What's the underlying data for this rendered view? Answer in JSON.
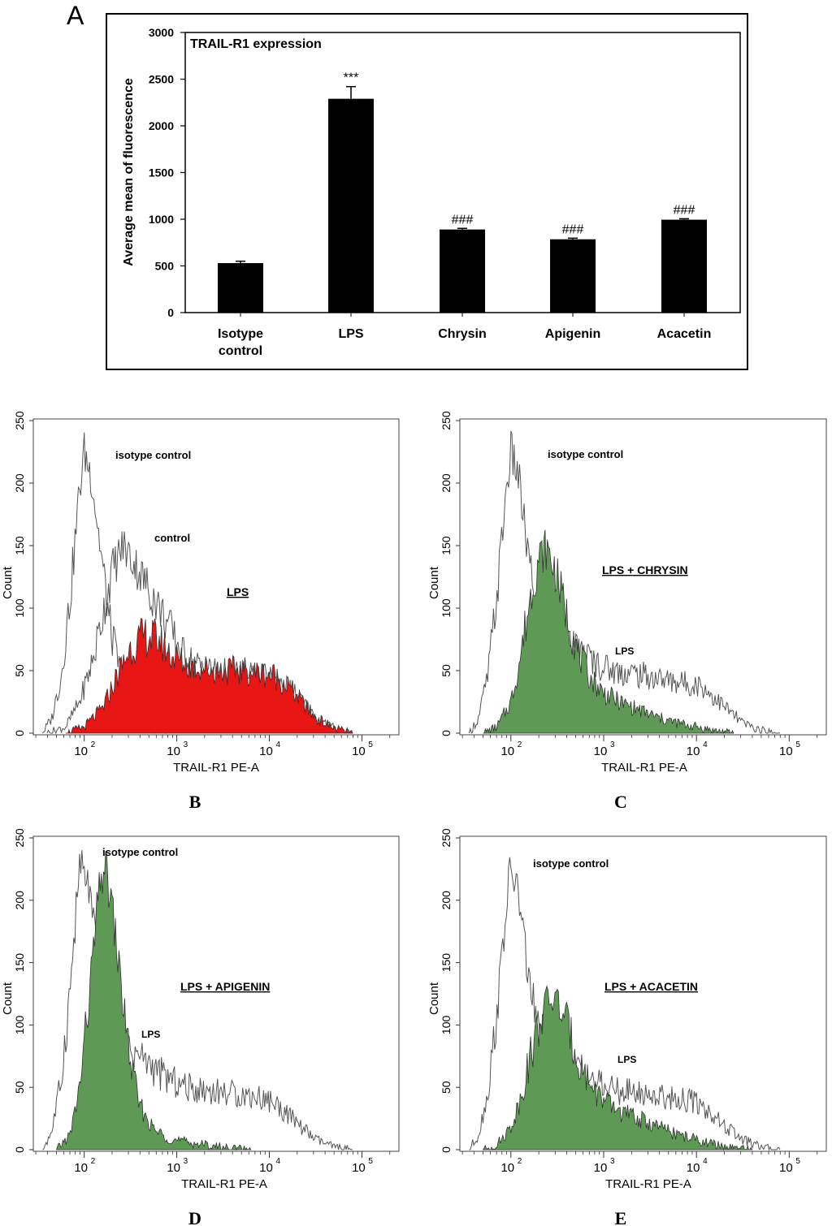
{
  "chart_data": [
    {
      "id": "A",
      "type": "bar",
      "panel_label": "A",
      "title": "TRAIL-R1 expression",
      "ylabel": "Average mean of fluorescence",
      "ylim": [
        0,
        3000
      ],
      "yticks": [
        "0",
        "500",
        "1000",
        "1500",
        "2000",
        "2500",
        "3000"
      ],
      "categories": [
        "Isotype control",
        "LPS",
        "Chrysin",
        "Apigenin",
        "Acacetin"
      ],
      "category_lines": [
        [
          "Isotype",
          "control"
        ],
        [
          "LPS"
        ],
        [
          "Chrysin"
        ],
        [
          "Apigenin"
        ],
        [
          "Acacetin"
        ]
      ],
      "values": [
        530,
        2290,
        890,
        785,
        995
      ],
      "errors": [
        20,
        130,
        12,
        12,
        10
      ],
      "annotations": [
        "",
        "***",
        "###",
        "###",
        "###"
      ],
      "bar_color": "#000000"
    },
    {
      "id": "B",
      "type": "area",
      "panel_label": "B",
      "xlabel": "TRAIL-R1 PE-A",
      "ylabel": "Count",
      "xscale": "log",
      "ylim": [
        0,
        250
      ],
      "yticks": [
        "0",
        "50",
        "100",
        "150",
        "200",
        "250"
      ],
      "xticks": [
        "10",
        "10",
        "10",
        "10"
      ],
      "xtick_exponents": [
        "2",
        "3",
        "4",
        "5"
      ],
      "fill_color": "#e81515",
      "series": [
        {
          "name": "isotype control",
          "style": "outline",
          "peak_log": 2.0,
          "peak_count": 225,
          "points": [
            [
              1.55,
              0
            ],
            [
              1.65,
              12
            ],
            [
              1.75,
              45
            ],
            [
              1.85,
              110
            ],
            [
              1.95,
              195
            ],
            [
              2.0,
              225
            ],
            [
              2.08,
              205
            ],
            [
              2.18,
              145
            ],
            [
              2.28,
              85
            ],
            [
              2.4,
              45
            ],
            [
              2.55,
              20
            ],
            [
              2.7,
              6
            ],
            [
              2.9,
              0
            ]
          ]
        },
        {
          "name": "control",
          "style": "outline",
          "peak_log": 2.42,
          "peak_count": 150,
          "points": [
            [
              1.6,
              0
            ],
            [
              1.8,
              5
            ],
            [
              1.95,
              25
            ],
            [
              2.1,
              60
            ],
            [
              2.2,
              95
            ],
            [
              2.3,
              130
            ],
            [
              2.42,
              150
            ],
            [
              2.55,
              135
            ],
            [
              2.7,
              115
            ],
            [
              2.85,
              95
            ],
            [
              2.95,
              80
            ],
            [
              3.05,
              65
            ],
            [
              3.2,
              55
            ],
            [
              3.4,
              50
            ],
            [
              3.6,
              48
            ],
            [
              3.8,
              46
            ],
            [
              4.0,
              44
            ],
            [
              4.15,
              40
            ],
            [
              4.3,
              30
            ],
            [
              4.5,
              12
            ],
            [
              4.7,
              4
            ],
            [
              4.9,
              0
            ]
          ]
        },
        {
          "name": "LPS",
          "style": "filled",
          "underline": true,
          "peak_log": 2.7,
          "peak_count": 78,
          "points": [
            [
              1.8,
              0
            ],
            [
              2.0,
              5
            ],
            [
              2.2,
              20
            ],
            [
              2.35,
              45
            ],
            [
              2.5,
              68
            ],
            [
              2.65,
              78
            ],
            [
              2.8,
              75
            ],
            [
              2.95,
              62
            ],
            [
              3.1,
              55
            ],
            [
              3.3,
              52
            ],
            [
              3.5,
              50
            ],
            [
              3.7,
              50
            ],
            [
              3.9,
              48
            ],
            [
              4.05,
              46
            ],
            [
              4.2,
              38
            ],
            [
              4.35,
              25
            ],
            [
              4.5,
              12
            ],
            [
              4.7,
              4
            ],
            [
              4.9,
              0
            ]
          ]
        }
      ],
      "labels": {
        "isotype": "isotype control",
        "control": "control",
        "treatment": "LPS"
      }
    },
    {
      "id": "C",
      "type": "area",
      "panel_label": "C",
      "xlabel": "TRAIL-R1 PE-A",
      "ylabel": "Count",
      "xscale": "log",
      "ylim": [
        0,
        250
      ],
      "yticks": [
        "0",
        "50",
        "100",
        "150",
        "200",
        "250"
      ],
      "xticks": [
        "10",
        "10",
        "10",
        "10"
      ],
      "xtick_exponents": [
        "2",
        "3",
        "4",
        "5"
      ],
      "fill_color": "#5e9a55",
      "series": [
        {
          "name": "isotype control",
          "style": "outline",
          "peak_log": 2.0,
          "peak_count": 225,
          "points": [
            [
              1.55,
              0
            ],
            [
              1.65,
              12
            ],
            [
              1.75,
              45
            ],
            [
              1.85,
              110
            ],
            [
              1.95,
              195
            ],
            [
              2.0,
              225
            ],
            [
              2.08,
              205
            ],
            [
              2.18,
              145
            ],
            [
              2.28,
              95
            ],
            [
              2.4,
              80
            ],
            [
              2.55,
              72
            ],
            [
              2.65,
              68
            ],
            [
              2.8,
              62
            ],
            [
              2.95,
              55
            ],
            [
              3.1,
              50
            ],
            [
              3.3,
              48
            ],
            [
              3.5,
              45
            ],
            [
              3.7,
              42
            ],
            [
              3.9,
              40
            ],
            [
              4.05,
              38
            ],
            [
              4.2,
              28
            ],
            [
              4.35,
              18
            ],
            [
              4.5,
              8
            ],
            [
              4.7,
              2
            ],
            [
              4.9,
              0
            ]
          ]
        },
        {
          "name": "LPS + CHRYSIN",
          "style": "filled",
          "underline": true,
          "peak_log": 2.38,
          "peak_count": 148,
          "points": [
            [
              1.7,
              0
            ],
            [
              1.85,
              5
            ],
            [
              2.0,
              25
            ],
            [
              2.1,
              60
            ],
            [
              2.2,
              105
            ],
            [
              2.3,
              140
            ],
            [
              2.38,
              148
            ],
            [
              2.48,
              130
            ],
            [
              2.6,
              95
            ],
            [
              2.72,
              65
            ],
            [
              2.85,
              45
            ],
            [
              3.0,
              32
            ],
            [
              3.2,
              24
            ],
            [
              3.4,
              18
            ],
            [
              3.6,
              12
            ],
            [
              3.8,
              8
            ],
            [
              4.0,
              5
            ],
            [
              4.2,
              2
            ],
            [
              4.4,
              0
            ]
          ]
        }
      ],
      "labels": {
        "isotype": "isotype control",
        "treatment": "LPS + CHRYSIN",
        "lps": "LPS"
      }
    },
    {
      "id": "D",
      "type": "area",
      "panel_label": "D",
      "xlabel": "TRAIL-R1 PE-A",
      "ylabel": "Count",
      "xscale": "log",
      "ylim": [
        0,
        250
      ],
      "yticks": [
        "0",
        "50",
        "100",
        "150",
        "200",
        "250"
      ],
      "xticks": [
        "10",
        "10",
        "10",
        "10"
      ],
      "xtick_exponents": [
        "2",
        "3",
        "4",
        "5"
      ],
      "fill_color": "#5e9a55",
      "series": [
        {
          "name": "isotype control",
          "style": "outline",
          "peak_log": 1.95,
          "peak_count": 228,
          "points": [
            [
              1.55,
              0
            ],
            [
              1.65,
              15
            ],
            [
              1.75,
              55
            ],
            [
              1.85,
              130
            ],
            [
              1.95,
              228
            ],
            [
              2.05,
              210
            ],
            [
              2.15,
              150
            ],
            [
              2.25,
              100
            ],
            [
              2.35,
              85
            ],
            [
              2.5,
              80
            ],
            [
              2.65,
              72
            ],
            [
              2.8,
              62
            ],
            [
              2.95,
              55
            ],
            [
              3.1,
              50
            ],
            [
              3.3,
              48
            ],
            [
              3.5,
              46
            ],
            [
              3.7,
              44
            ],
            [
              3.9,
              42
            ],
            [
              4.05,
              38
            ],
            [
              4.2,
              28
            ],
            [
              4.35,
              18
            ],
            [
              4.5,
              8
            ],
            [
              4.7,
              2
            ],
            [
              4.9,
              0
            ]
          ]
        },
        {
          "name": "LPS + APIGENIN",
          "style": "filled",
          "underline": true,
          "peak_log": 2.22,
          "peak_count": 230,
          "points": [
            [
              1.7,
              0
            ],
            [
              1.85,
              12
            ],
            [
              1.95,
              50
            ],
            [
              2.05,
              120
            ],
            [
              2.15,
              200
            ],
            [
              2.22,
              230
            ],
            [
              2.3,
              195
            ],
            [
              2.4,
              130
            ],
            [
              2.5,
              70
            ],
            [
              2.6,
              35
            ],
            [
              2.75,
              16
            ],
            [
              2.95,
              8
            ],
            [
              3.2,
              5
            ],
            [
              3.5,
              2
            ],
            [
              3.8,
              0
            ]
          ]
        }
      ],
      "labels": {
        "isotype": "isotype control",
        "treatment": "LPS + APIGENIN",
        "lps": "LPS"
      }
    },
    {
      "id": "E",
      "type": "area",
      "panel_label": "E",
      "xlabel": "TRAIL-R1 PE-A",
      "ylabel": "Count",
      "xscale": "log",
      "ylim": [
        0,
        250
      ],
      "yticks": [
        "0",
        "50",
        "100",
        "150",
        "200",
        "250"
      ],
      "xticks": [
        "10",
        "10",
        "10",
        "10"
      ],
      "xtick_exponents": [
        "2",
        "3",
        "4",
        "5"
      ],
      "fill_color": "#5e9a55",
      "series": [
        {
          "name": "isotype control",
          "style": "outline",
          "peak_log": 2.0,
          "peak_count": 225,
          "points": [
            [
              1.55,
              0
            ],
            [
              1.65,
              12
            ],
            [
              1.75,
              45
            ],
            [
              1.85,
              110
            ],
            [
              1.95,
              195
            ],
            [
              2.0,
              225
            ],
            [
              2.08,
              205
            ],
            [
              2.18,
              145
            ],
            [
              2.28,
              100
            ],
            [
              2.4,
              82
            ],
            [
              2.55,
              72
            ],
            [
              2.65,
              68
            ],
            [
              2.8,
              60
            ],
            [
              2.95,
              52
            ],
            [
              3.1,
              48
            ],
            [
              3.3,
              46
            ],
            [
              3.5,
              44
            ],
            [
              3.7,
              42
            ],
            [
              3.9,
              40
            ],
            [
              4.05,
              36
            ],
            [
              4.2,
              26
            ],
            [
              4.35,
              16
            ],
            [
              4.5,
              8
            ],
            [
              4.7,
              2
            ],
            [
              4.9,
              0
            ]
          ]
        },
        {
          "name": "LPS + ACACETIN",
          "style": "filled",
          "underline": true,
          "peak_log": 2.45,
          "peak_count": 122,
          "points": [
            [
              1.7,
              0
            ],
            [
              1.85,
              4
            ],
            [
              2.0,
              18
            ],
            [
              2.1,
              40
            ],
            [
              2.2,
              72
            ],
            [
              2.3,
              100
            ],
            [
              2.4,
              118
            ],
            [
              2.45,
              122
            ],
            [
              2.55,
              112
            ],
            [
              2.65,
              90
            ],
            [
              2.75,
              68
            ],
            [
              2.9,
              48
            ],
            [
              3.05,
              36
            ],
            [
              3.2,
              30
            ],
            [
              3.4,
              24
            ],
            [
              3.6,
              18
            ],
            [
              3.8,
              12
            ],
            [
              4.0,
              8
            ],
            [
              4.2,
              4
            ],
            [
              4.4,
              1
            ],
            [
              4.6,
              0
            ]
          ]
        }
      ],
      "labels": {
        "isotype": "isotype control",
        "treatment": "LPS + ACACETIN",
        "lps": "LPS"
      }
    }
  ]
}
